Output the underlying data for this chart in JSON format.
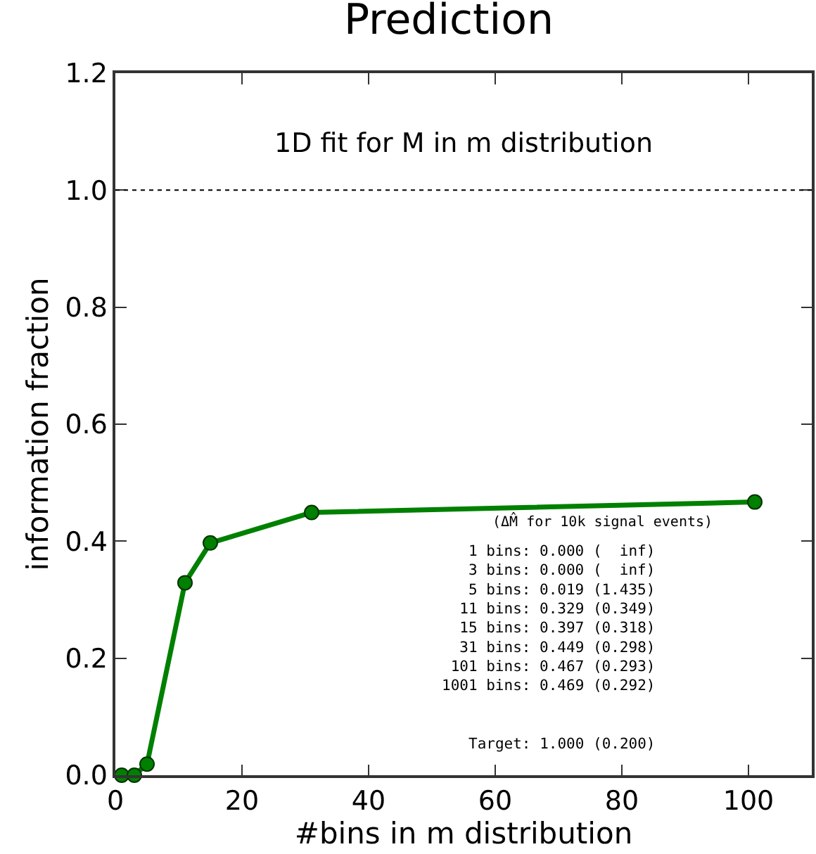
{
  "chart_data": {
    "type": "line",
    "title": "Prediction",
    "xlabel": "#bins in m distribution",
    "ylabel": "information fraction",
    "x": [
      1,
      3,
      5,
      11,
      15,
      31,
      101
    ],
    "series": [
      {
        "color": "#008000",
        "values": [
          0.0,
          0.0,
          0.019,
          0.329,
          0.397,
          0.449,
          0.467
        ]
      }
    ],
    "marker": "circle",
    "line_style": "solid",
    "xlim": [
      0,
      110
    ],
    "xticks": [
      0,
      20,
      40,
      60,
      80,
      100
    ],
    "ylim": [
      0,
      1.2
    ],
    "yticks": [
      {
        "value": 0,
        "label": "0.0"
      },
      {
        "value": 0.2,
        "label": "0.2"
      },
      {
        "value": 0.4,
        "label": "0.4"
      },
      {
        "value": 0.6,
        "label": "0.6"
      },
      {
        "value": 0.8,
        "label": "0.8"
      },
      {
        "value": 1.0,
        "label": "1.0"
      },
      {
        "value": 1.2,
        "label": "1.2"
      }
    ],
    "ref_lines": [
      {
        "axis": "y",
        "value": 1.0,
        "color": "#000000",
        "line_style": "dotted"
      }
    ],
    "annotations": [
      "1D fit for M in m distribution",
      "(ΔM̂ for 10k signal events)",
      "1 bins: 0.000 (  inf)",
      "3 bins: 0.000 (  inf)",
      "5 bins: 0.019 (1.435)",
      "11 bins: 0.329 (0.349)",
      "15 bins: 0.397 (0.318)",
      "31 bins: 0.449 (0.298)",
      "101 bins: 0.467 (0.293)",
      "1001 bins: 0.469 (0.292)",
      "Target: 1.000 (0.200)"
    ]
  }
}
